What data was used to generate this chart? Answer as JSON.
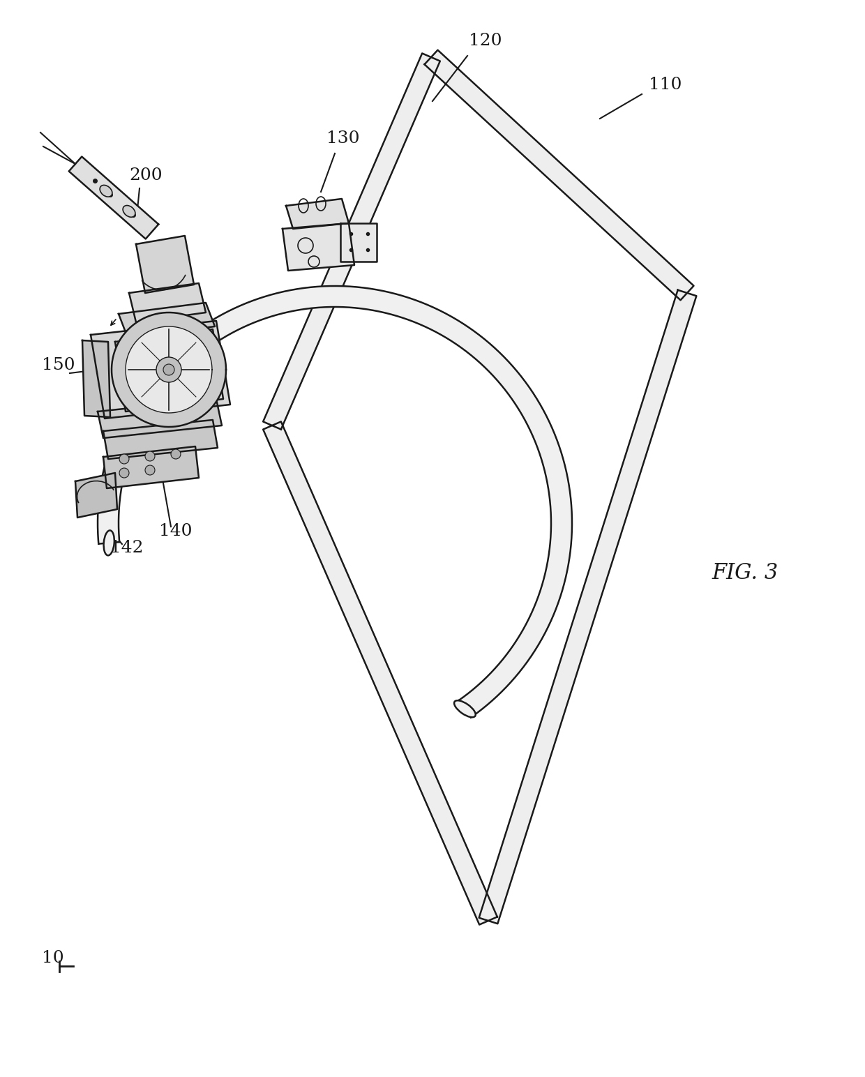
{
  "bg_color": "#ffffff",
  "line_color": "#1a1a1a",
  "line_width": 1.8,
  "fig_label": "FIG. 3",
  "label_fontsize": 18,
  "fig3_fontsize": 22
}
